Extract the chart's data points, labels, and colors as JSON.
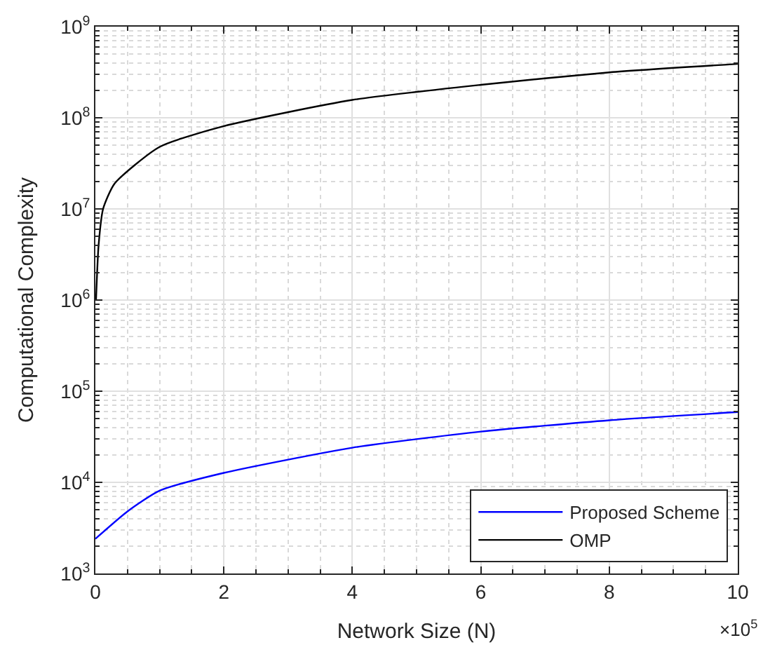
{
  "chart_data": {
    "type": "line",
    "xlabel": "Network Size (N)",
    "ylabel": "Computational Complexity",
    "log": "y",
    "grid": true,
    "legend": "bottom right",
    "line_style": "solid",
    "marker": "none",
    "xlim": [
      0,
      10
    ],
    "ylim": [
      1000,
      1000000000
    ],
    "xticks": [
      0,
      2,
      4,
      6,
      8,
      10
    ],
    "yticks": [
      {
        "value": 1000,
        "label": "10$^{3}$"
      },
      {
        "value": 10000,
        "label": "10$^{4}$"
      },
      {
        "value": 100000,
        "label": "10$^{5}$"
      },
      {
        "value": 1000000,
        "label": "10$^{6}$"
      },
      {
        "value": 10000000,
        "label": "10$^{7}$"
      },
      {
        "value": 100000000,
        "label": "10$^{8}$"
      },
      {
        "value": 1000000000,
        "label": "10$^{9}$"
      }
    ],
    "annotations": [
      "×10$^{5}$"
    ],
    "series": [
      {
        "name": "Proposed Scheme",
        "color": "#0000ff",
        "x": [
          0,
          0.5,
          1,
          2,
          4,
          6,
          8,
          10
        ],
        "values": [
          2400,
          4800,
          8100,
          12700,
          24000,
          36000,
          48000,
          59000
        ]
      },
      {
        "name": "OMP",
        "color": "#000000",
        "x": [
          0.01,
          0.05,
          0.12,
          0.3,
          1,
          2,
          4,
          6,
          8,
          10
        ],
        "values": [
          1000000,
          4000000,
          10000000,
          19000000,
          48000000,
          81000000,
          157000000,
          230000000,
          315000000,
          390000000
        ]
      }
    ]
  }
}
